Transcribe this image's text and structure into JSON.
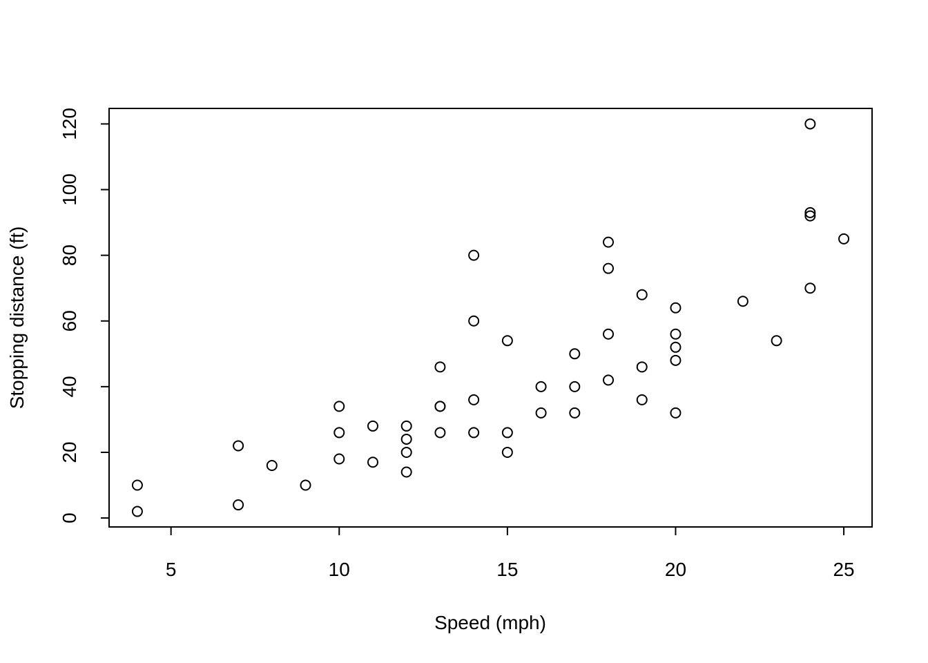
{
  "chart_data": {
    "type": "scatter",
    "title": "",
    "xlabel": "Speed (mph)",
    "ylabel": "Stopping distance (ft)",
    "xlim": [
      3.16,
      25.84
    ],
    "ylim": [
      -2.72,
      124.72
    ],
    "xticks": [
      5,
      10,
      15,
      20,
      25
    ],
    "yticks": [
      0,
      20,
      40,
      60,
      80,
      100,
      120
    ],
    "xtick_labels": [
      "5",
      "10",
      "15",
      "20",
      "25"
    ],
    "ytick_labels": [
      "0",
      "20",
      "40",
      "60",
      "80",
      "100",
      "120"
    ],
    "grid": false,
    "legend": "none",
    "marker": "open-circle",
    "color": "#000000",
    "points": [
      {
        "x": 4,
        "y": 2
      },
      {
        "x": 4,
        "y": 10
      },
      {
        "x": 7,
        "y": 4
      },
      {
        "x": 7,
        "y": 22
      },
      {
        "x": 8,
        "y": 16
      },
      {
        "x": 9,
        "y": 10
      },
      {
        "x": 10,
        "y": 18
      },
      {
        "x": 10,
        "y": 26
      },
      {
        "x": 10,
        "y": 34
      },
      {
        "x": 11,
        "y": 17
      },
      {
        "x": 11,
        "y": 28
      },
      {
        "x": 12,
        "y": 14
      },
      {
        "x": 12,
        "y": 20
      },
      {
        "x": 12,
        "y": 24
      },
      {
        "x": 12,
        "y": 28
      },
      {
        "x": 13,
        "y": 26
      },
      {
        "x": 13,
        "y": 34
      },
      {
        "x": 13,
        "y": 34
      },
      {
        "x": 13,
        "y": 46
      },
      {
        "x": 14,
        "y": 26
      },
      {
        "x": 14,
        "y": 36
      },
      {
        "x": 14,
        "y": 60
      },
      {
        "x": 14,
        "y": 80
      },
      {
        "x": 15,
        "y": 20
      },
      {
        "x": 15,
        "y": 26
      },
      {
        "x": 15,
        "y": 54
      },
      {
        "x": 16,
        "y": 32
      },
      {
        "x": 16,
        "y": 40
      },
      {
        "x": 17,
        "y": 32
      },
      {
        "x": 17,
        "y": 40
      },
      {
        "x": 17,
        "y": 50
      },
      {
        "x": 18,
        "y": 42
      },
      {
        "x": 18,
        "y": 56
      },
      {
        "x": 18,
        "y": 76
      },
      {
        "x": 18,
        "y": 84
      },
      {
        "x": 19,
        "y": 36
      },
      {
        "x": 19,
        "y": 46
      },
      {
        "x": 19,
        "y": 68
      },
      {
        "x": 20,
        "y": 32
      },
      {
        "x": 20,
        "y": 48
      },
      {
        "x": 20,
        "y": 52
      },
      {
        "x": 20,
        "y": 56
      },
      {
        "x": 20,
        "y": 64
      },
      {
        "x": 22,
        "y": 66
      },
      {
        "x": 23,
        "y": 54
      },
      {
        "x": 24,
        "y": 70
      },
      {
        "x": 24,
        "y": 92
      },
      {
        "x": 24,
        "y": 93
      },
      {
        "x": 24,
        "y": 120
      },
      {
        "x": 25,
        "y": 85
      }
    ]
  }
}
